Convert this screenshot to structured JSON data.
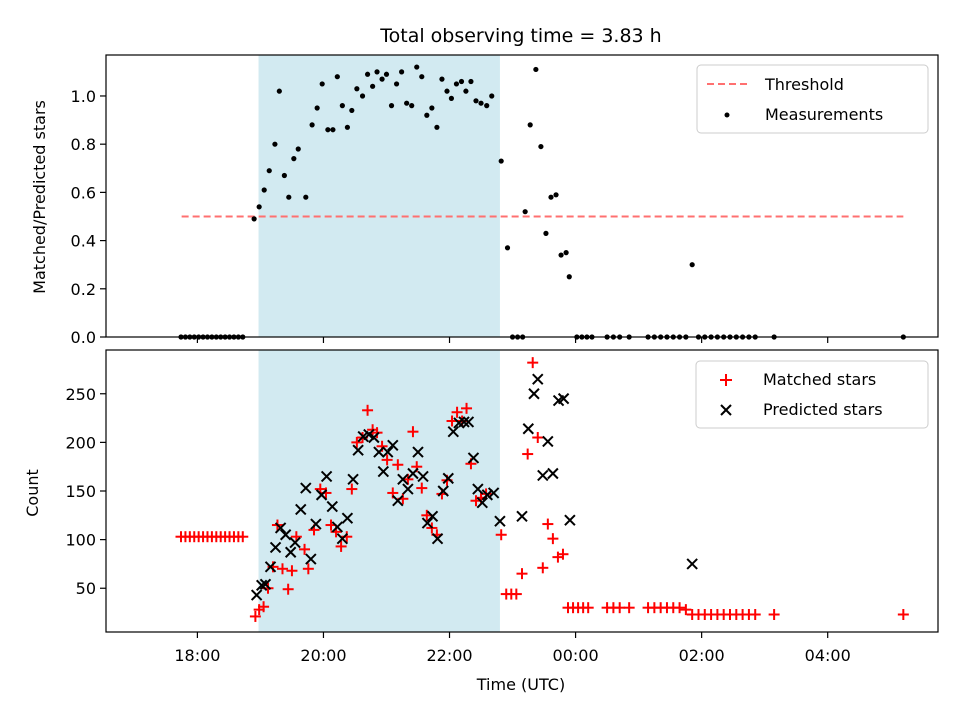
{
  "chart_data": {
    "type": "scatter",
    "title": "Total observing time = 3.83 h",
    "xlabel": "Time (UTC)",
    "x_unit": "hours since 00:00 UTC (negative = previous evening)",
    "xlim": [
      -7.45,
      5.75
    ],
    "xticks": [
      {
        "value": -6,
        "label": "18:00"
      },
      {
        "value": -4,
        "label": "20:00"
      },
      {
        "value": -2,
        "label": "22:00"
      },
      {
        "value": 0,
        "label": "00:00"
      },
      {
        "value": 2,
        "label": "02:00"
      },
      {
        "value": 4,
        "label": "04:00"
      }
    ],
    "observing_window": {
      "start": -5.03,
      "end": -1.2,
      "color": "#add8e6"
    },
    "top": {
      "ylabel": "Matched/Predicted stars",
      "ylim": [
        0,
        1.17
      ],
      "yticks": [
        0.0,
        0.2,
        0.4,
        0.6,
        0.8,
        1.0
      ],
      "ytick_labels": [
        "0.0",
        "0.2",
        "0.4",
        "0.6",
        "0.8",
        "1.0"
      ],
      "legend": {
        "position": "top-right",
        "entries": [
          "Threshold",
          "Measurements"
        ]
      },
      "threshold": {
        "name": "Threshold",
        "value": 0.5,
        "x_range": [
          -6.25,
          5.2
        ],
        "color": "#ff7070"
      },
      "measurements": {
        "name": "Measurements",
        "color": "#000000",
        "points": [
          [
            -6.26,
            0
          ],
          [
            -6.19,
            0
          ],
          [
            -6.12,
            0
          ],
          [
            -6.05,
            0
          ],
          [
            -5.98,
            0
          ],
          [
            -5.91,
            0
          ],
          [
            -5.84,
            0
          ],
          [
            -5.77,
            0
          ],
          [
            -5.7,
            0
          ],
          [
            -5.63,
            0
          ],
          [
            -5.56,
            0
          ],
          [
            -5.49,
            0
          ],
          [
            -5.42,
            0
          ],
          [
            -5.35,
            0
          ],
          [
            -5.28,
            0
          ],
          [
            -5.1,
            0.49
          ],
          [
            -5.02,
            0.54
          ],
          [
            -4.94,
            0.61
          ],
          [
            -4.86,
            0.69
          ],
          [
            -4.77,
            0.8
          ],
          [
            -4.7,
            1.02
          ],
          [
            -4.62,
            0.67
          ],
          [
            -4.55,
            0.58
          ],
          [
            -4.47,
            0.74
          ],
          [
            -4.4,
            0.78
          ],
          [
            -4.28,
            0.58
          ],
          [
            -4.18,
            0.88
          ],
          [
            -4.1,
            0.95
          ],
          [
            -4.02,
            1.05
          ],
          [
            -3.93,
            0.86
          ],
          [
            -3.85,
            0.86
          ],
          [
            -3.78,
            1.08
          ],
          [
            -3.7,
            0.96
          ],
          [
            -3.62,
            0.87
          ],
          [
            -3.55,
            0.94
          ],
          [
            -3.47,
            1.03
          ],
          [
            -3.38,
            1.0
          ],
          [
            -3.3,
            1.09
          ],
          [
            -3.22,
            1.04
          ],
          [
            -3.15,
            1.1
          ],
          [
            -3.07,
            1.07
          ],
          [
            -3.0,
            1.09
          ],
          [
            -2.92,
            0.96
          ],
          [
            -2.84,
            1.05
          ],
          [
            -2.76,
            1.1
          ],
          [
            -2.68,
            0.97
          ],
          [
            -2.6,
            0.96
          ],
          [
            -2.52,
            1.12
          ],
          [
            -2.44,
            1.08
          ],
          [
            -2.36,
            0.92
          ],
          [
            -2.28,
            0.95
          ],
          [
            -2.2,
            0.87
          ],
          [
            -2.12,
            1.07
          ],
          [
            -2.04,
            1.02
          ],
          [
            -1.97,
            0.99
          ],
          [
            -1.89,
            1.05
          ],
          [
            -1.81,
            1.06
          ],
          [
            -1.74,
            1.02
          ],
          [
            -1.66,
            1.06
          ],
          [
            -1.58,
            0.98
          ],
          [
            -1.5,
            0.97
          ],
          [
            -1.41,
            0.96
          ],
          [
            -1.33,
            1.0
          ],
          [
            -1.18,
            0.73
          ],
          [
            -1.08,
            0.37
          ],
          [
            -1.0,
            0
          ],
          [
            -0.92,
            0
          ],
          [
            -0.84,
            0
          ],
          [
            -0.8,
            0.52
          ],
          [
            -0.72,
            0.88
          ],
          [
            -0.63,
            1.11
          ],
          [
            -0.55,
            0.79
          ],
          [
            -0.47,
            0.43
          ],
          [
            -0.39,
            0.58
          ],
          [
            -0.31,
            0.59
          ],
          [
            -0.23,
            0.34
          ],
          [
            -0.15,
            0.35
          ],
          [
            -0.1,
            0.25
          ],
          [
            0.02,
            0
          ],
          [
            0.1,
            0
          ],
          [
            0.18,
            0
          ],
          [
            0.26,
            0
          ],
          [
            0.5,
            0
          ],
          [
            0.6,
            0
          ],
          [
            0.7,
            0
          ],
          [
            0.85,
            0
          ],
          [
            1.15,
            0
          ],
          [
            1.25,
            0
          ],
          [
            1.35,
            0
          ],
          [
            1.45,
            0
          ],
          [
            1.55,
            0
          ],
          [
            1.65,
            0
          ],
          [
            1.75,
            0
          ],
          [
            1.85,
            0.3
          ],
          [
            1.95,
            0
          ],
          [
            2.05,
            0
          ],
          [
            2.15,
            0
          ],
          [
            2.25,
            0
          ],
          [
            2.35,
            0
          ],
          [
            2.45,
            0
          ],
          [
            2.55,
            0
          ],
          [
            2.65,
            0
          ],
          [
            2.75,
            0
          ],
          [
            2.85,
            0
          ],
          [
            3.15,
            0
          ],
          [
            5.2,
            0
          ]
        ]
      }
    },
    "bottom": {
      "ylabel": "Count",
      "ylim": [
        5,
        295
      ],
      "yticks": [
        50,
        100,
        150,
        200,
        250
      ],
      "ytick_labels": [
        "50",
        "100",
        "150",
        "200",
        "250"
      ],
      "legend": {
        "position": "top-right",
        "entries": [
          "Matched stars",
          "Predicted stars"
        ]
      },
      "series": [
        {
          "name": "Matched stars",
          "marker": "plus",
          "color": "#ff0000",
          "points": [
            [
              -6.26,
              103
            ],
            [
              -6.19,
              103
            ],
            [
              -6.12,
              103
            ],
            [
              -6.05,
              103
            ],
            [
              -5.98,
              103
            ],
            [
              -5.91,
              103
            ],
            [
              -5.84,
              103
            ],
            [
              -5.77,
              103
            ],
            [
              -5.7,
              103
            ],
            [
              -5.63,
              103
            ],
            [
              -5.56,
              103
            ],
            [
              -5.49,
              103
            ],
            [
              -5.42,
              103
            ],
            [
              -5.35,
              103
            ],
            [
              -5.28,
              103
            ],
            [
              -5.08,
              21
            ],
            [
              -5.02,
              28
            ],
            [
              -4.95,
              31
            ],
            [
              -4.88,
              50
            ],
            [
              -4.8,
              72
            ],
            [
              -4.73,
              115
            ],
            [
              -4.65,
              70
            ],
            [
              -4.56,
              49
            ],
            [
              -4.5,
              68
            ],
            [
              -4.43,
              103
            ],
            [
              -4.3,
              90
            ],
            [
              -4.24,
              70
            ],
            [
              -4.15,
              110
            ],
            [
              -4.05,
              152
            ],
            [
              -3.96,
              148
            ],
            [
              -3.88,
              115
            ],
            [
              -3.8,
              108
            ],
            [
              -3.72,
              93
            ],
            [
              -3.63,
              103
            ],
            [
              -3.55,
              152
            ],
            [
              -3.47,
              200
            ],
            [
              -3.38,
              205
            ],
            [
              -3.3,
              233
            ],
            [
              -3.22,
              213
            ],
            [
              -3.15,
              210
            ],
            [
              -3.07,
              196
            ],
            [
              -2.99,
              182
            ],
            [
              -2.9,
              148
            ],
            [
              -2.82,
              177
            ],
            [
              -2.74,
              142
            ],
            [
              -2.66,
              162
            ],
            [
              -2.58,
              211
            ],
            [
              -2.52,
              175
            ],
            [
              -2.44,
              153
            ],
            [
              -2.36,
              125
            ],
            [
              -2.28,
              112
            ],
            [
              -2.2,
              105
            ],
            [
              -2.12,
              147
            ],
            [
              -2.04,
              161
            ],
            [
              -1.96,
              222
            ],
            [
              -1.88,
              231
            ],
            [
              -1.8,
              222
            ],
            [
              -1.73,
              235
            ],
            [
              -1.66,
              178
            ],
            [
              -1.58,
              140
            ],
            [
              -1.5,
              143
            ],
            [
              -1.42,
              147
            ],
            [
              -1.18,
              105
            ],
            [
              -1.1,
              44
            ],
            [
              -1.02,
              44
            ],
            [
              -0.94,
              44
            ],
            [
              -0.85,
              65
            ],
            [
              -0.76,
              188
            ],
            [
              -0.68,
              282
            ],
            [
              -0.6,
              205
            ],
            [
              -0.52,
              71
            ],
            [
              -0.44,
              116
            ],
            [
              -0.36,
              101
            ],
            [
              -0.28,
              82
            ],
            [
              -0.2,
              85
            ],
            [
              -0.12,
              30
            ],
            [
              -0.04,
              30
            ],
            [
              0.04,
              30
            ],
            [
              0.12,
              30
            ],
            [
              0.2,
              30
            ],
            [
              0.5,
              30
            ],
            [
              0.6,
              30
            ],
            [
              0.7,
              30
            ],
            [
              0.85,
              30
            ],
            [
              1.15,
              30
            ],
            [
              1.25,
              30
            ],
            [
              1.35,
              30
            ],
            [
              1.45,
              30
            ],
            [
              1.55,
              30
            ],
            [
              1.65,
              30
            ],
            [
              1.75,
              28
            ],
            [
              1.85,
              23
            ],
            [
              1.95,
              23
            ],
            [
              2.05,
              23
            ],
            [
              2.15,
              23
            ],
            [
              2.25,
              23
            ],
            [
              2.35,
              23
            ],
            [
              2.45,
              23
            ],
            [
              2.55,
              23
            ],
            [
              2.65,
              23
            ],
            [
              2.75,
              23
            ],
            [
              2.85,
              23
            ],
            [
              3.15,
              23
            ],
            [
              5.2,
              23
            ]
          ]
        },
        {
          "name": "Predicted stars",
          "marker": "x",
          "color": "#000000",
          "points": [
            [
              -5.06,
              43
            ],
            [
              -4.98,
              53
            ],
            [
              -4.92,
              54
            ],
            [
              -4.84,
              72
            ],
            [
              -4.76,
              92
            ],
            [
              -4.68,
              112
            ],
            [
              -4.6,
              105
            ],
            [
              -4.52,
              87
            ],
            [
              -4.45,
              97
            ],
            [
              -4.36,
              131
            ],
            [
              -4.28,
              153
            ],
            [
              -4.2,
              80
            ],
            [
              -4.12,
              116
            ],
            [
              -4.03,
              146
            ],
            [
              -3.95,
              165
            ],
            [
              -3.86,
              134
            ],
            [
              -3.78,
              113
            ],
            [
              -3.7,
              101
            ],
            [
              -3.62,
              122
            ],
            [
              -3.53,
              162
            ],
            [
              -3.45,
              192
            ],
            [
              -3.37,
              206
            ],
            [
              -3.28,
              208
            ],
            [
              -3.2,
              205
            ],
            [
              -3.12,
              190
            ],
            [
              -3.05,
              170
            ],
            [
              -2.98,
              190
            ],
            [
              -2.9,
              197
            ],
            [
              -2.82,
              140
            ],
            [
              -2.74,
              162
            ],
            [
              -2.66,
              152
            ],
            [
              -2.58,
              168
            ],
            [
              -2.5,
              190
            ],
            [
              -2.42,
              165
            ],
            [
              -2.35,
              117
            ],
            [
              -2.27,
              124
            ],
            [
              -2.19,
              101
            ],
            [
              -2.1,
              150
            ],
            [
              -2.02,
              163
            ],
            [
              -1.94,
              211
            ],
            [
              -1.85,
              220
            ],
            [
              -1.77,
              221
            ],
            [
              -1.7,
              221
            ],
            [
              -1.62,
              184
            ],
            [
              -1.55,
              152
            ],
            [
              -1.48,
              138
            ],
            [
              -1.4,
              146
            ],
            [
              -1.3,
              148
            ],
            [
              -1.2,
              119
            ],
            [
              -0.85,
              124
            ],
            [
              -0.75,
              214
            ],
            [
              -0.66,
              250
            ],
            [
              -0.6,
              265
            ],
            [
              -0.52,
              166
            ],
            [
              -0.44,
              201
            ],
            [
              -0.36,
              168
            ],
            [
              -0.27,
              243
            ],
            [
              -0.19,
              245
            ],
            [
              -0.09,
              120
            ],
            [
              1.85,
              75
            ]
          ]
        }
      ]
    }
  }
}
